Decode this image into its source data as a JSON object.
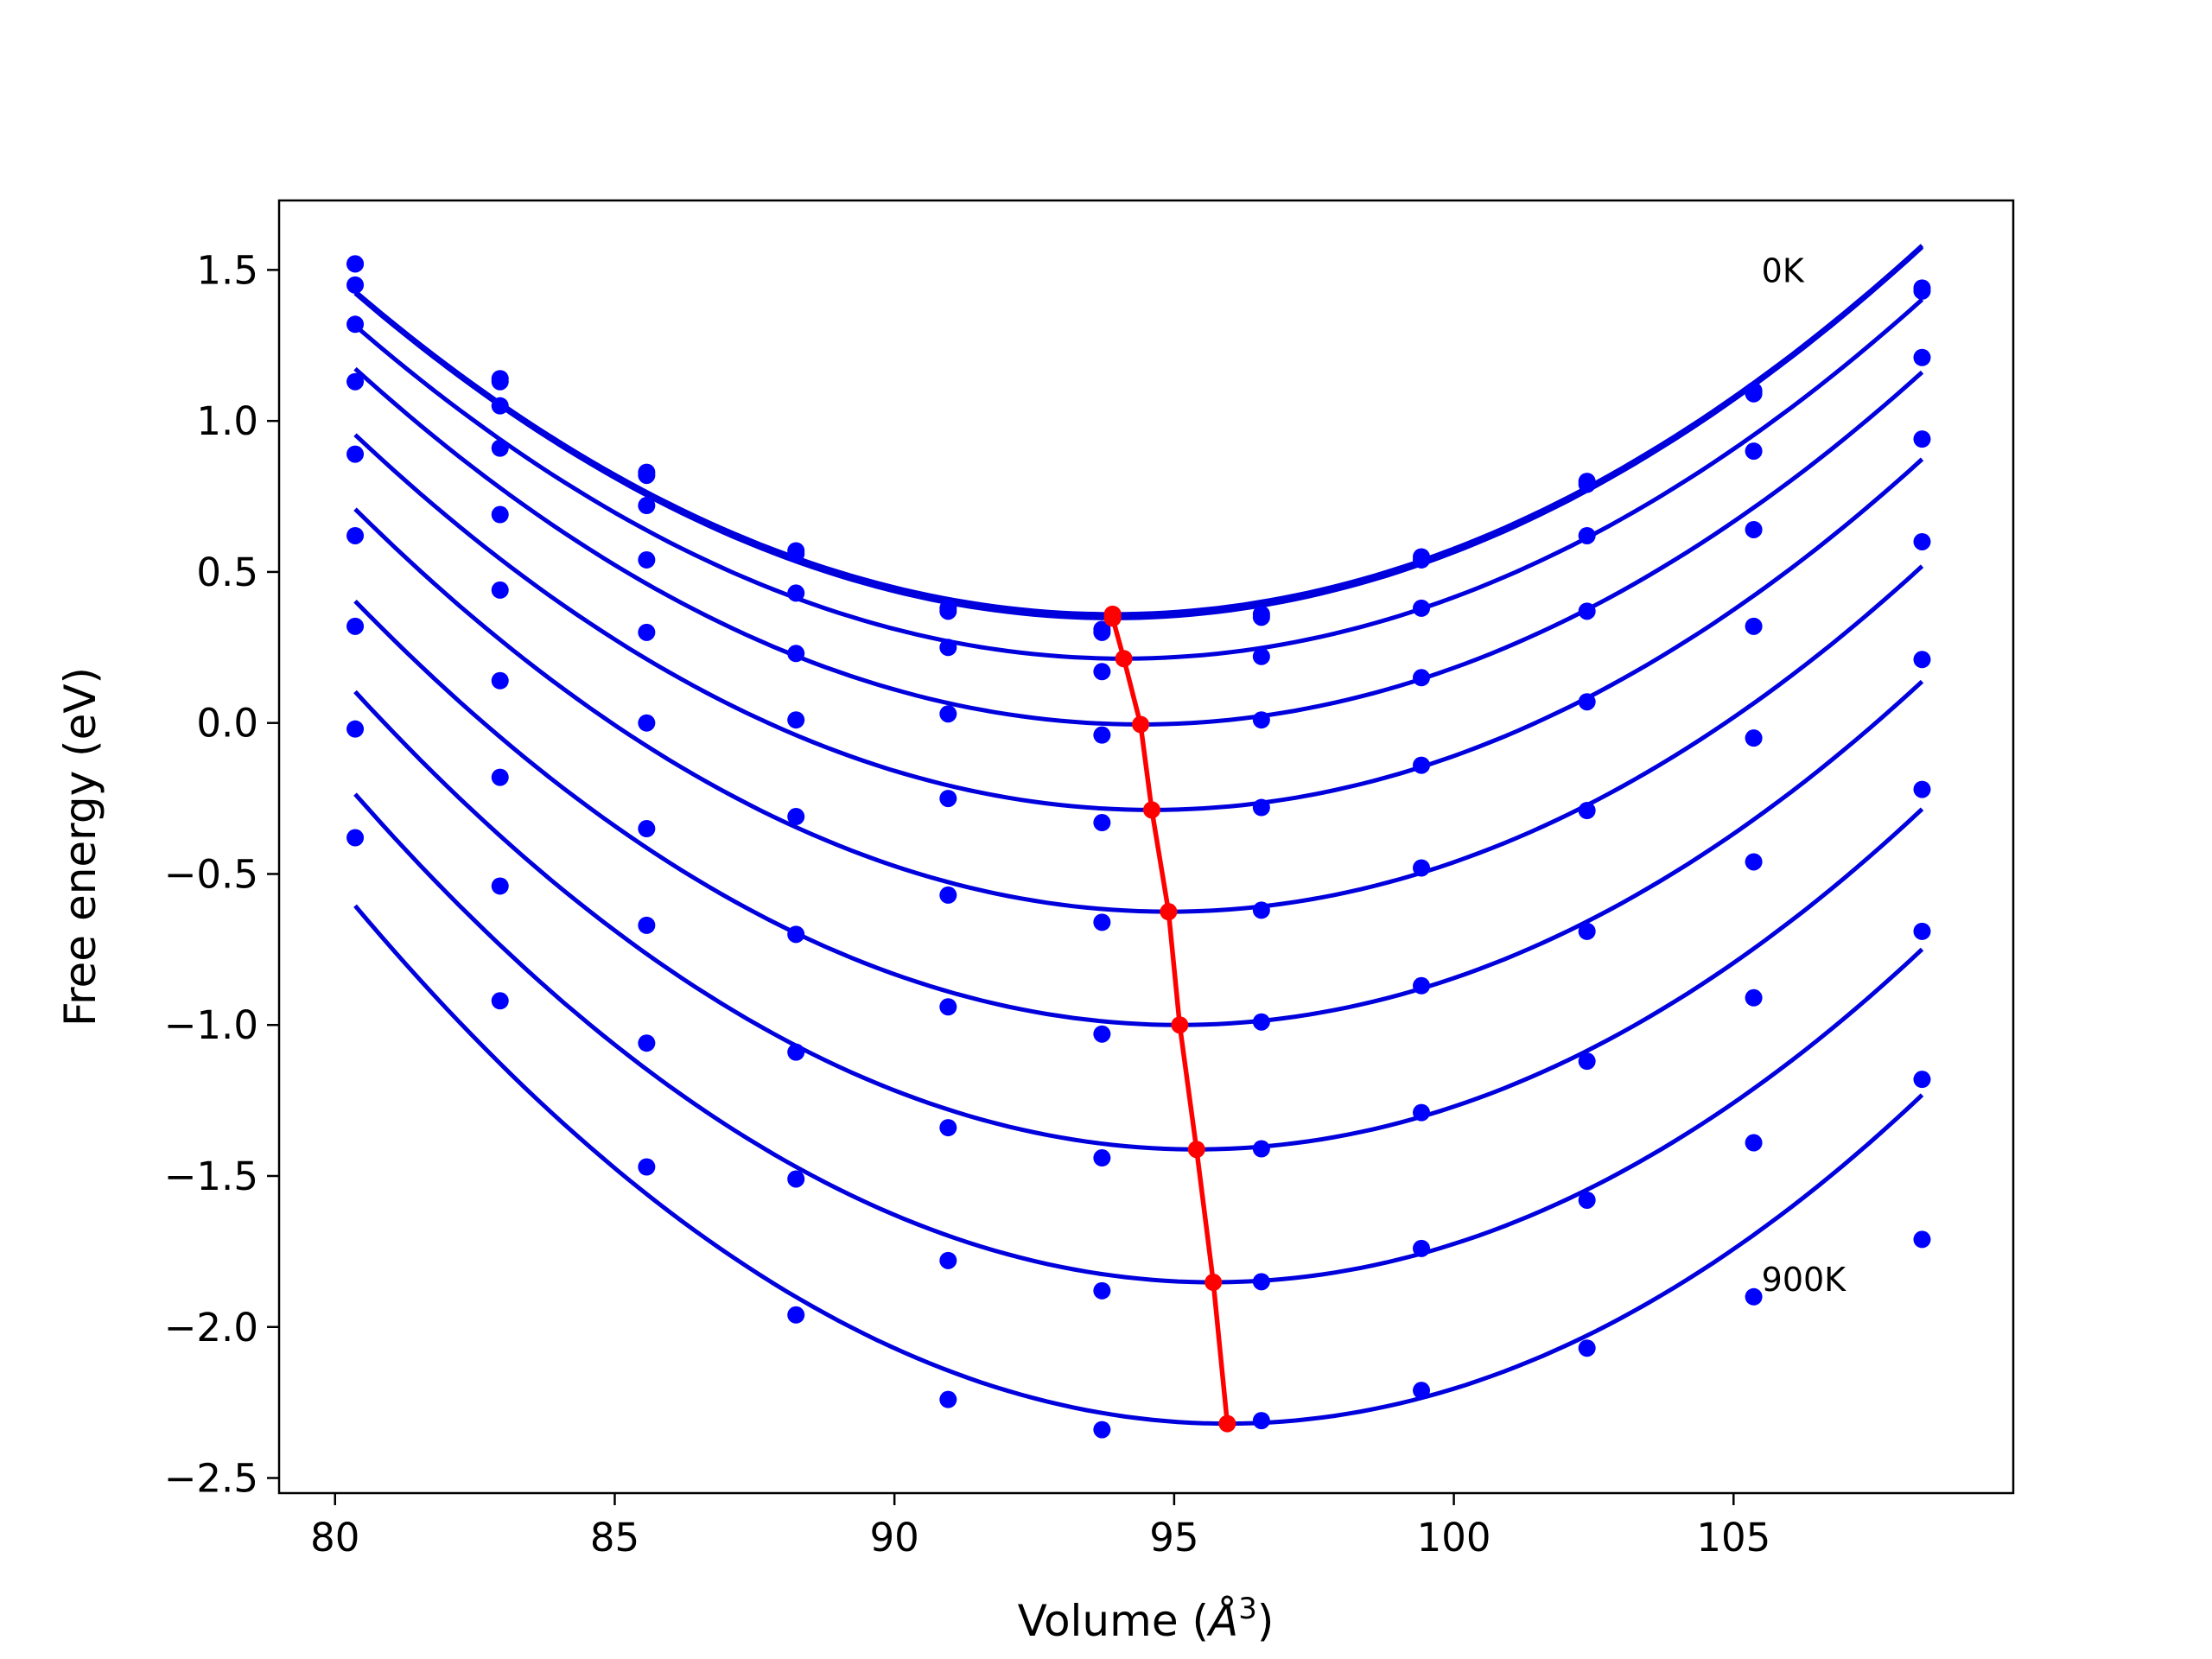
{
  "chart_data": {
    "type": "line",
    "title": "",
    "xlabel": "Volume (",
    "xlabel_symbol": "Å",
    "xlabel_exponent": "3",
    "xlabel_close": ")",
    "ylabel": "Free energy (eV)",
    "xlim": [
      79,
      110
    ],
    "ylim": [
      -2.55,
      1.73
    ],
    "xticks": [
      80,
      85,
      90,
      95,
      100,
      105
    ],
    "xtick_labels": [
      "80",
      "85",
      "90",
      "95",
      "100",
      "105"
    ],
    "yticks": [
      -2.5,
      -2.0,
      -1.5,
      -1.0,
      -0.5,
      0.0,
      0.5,
      1.0,
      1.5
    ],
    "ytick_labels": [
      "−2.5",
      "−2.0",
      "−1.5",
      "−1.0",
      "−0.5",
      "0.0",
      "0.5",
      "1.0",
      "1.5"
    ],
    "grid": false,
    "annotations": [
      {
        "text": "0K",
        "x": 105.5,
        "y": 1.5
      },
      {
        "text": "900K",
        "x": 105.5,
        "y": -1.84
      }
    ],
    "volumes": [
      80.36,
      82.95,
      85.57,
      88.24,
      90.96,
      93.71,
      96.56,
      99.42,
      102.38,
      105.36,
      108.37
    ],
    "fit_color": "#0000dd",
    "point_color": "#0000ff",
    "min_color": "#ff0000",
    "series": [
      {
        "minimum": [
          93.9,
          0.36
        ],
        "values": [
          1.52,
          1.14,
          0.83,
          0.57,
          0.38,
          0.31,
          0.36,
          0.55,
          0.8,
          1.1,
          1.44
        ]
      },
      {
        "minimum": [
          93.9,
          0.347
        ],
        "values": [
          1.52,
          1.13,
          0.82,
          0.56,
          0.37,
          0.3,
          0.35,
          0.54,
          0.79,
          1.09,
          1.43
        ]
      },
      {
        "minimum": [
          94.1,
          0.213
        ],
        "values": [
          1.45,
          1.05,
          0.72,
          0.43,
          0.25,
          0.17,
          0.22,
          0.38,
          0.62,
          0.9,
          1.21
        ]
      },
      {
        "minimum": [
          94.4,
          -0.005
        ],
        "values": [
          1.32,
          0.91,
          0.54,
          0.23,
          0.03,
          -0.04,
          0.01,
          0.15,
          0.37,
          0.64,
          0.94
        ]
      },
      {
        "minimum": [
          94.6,
          -0.288
        ],
        "values": [
          1.13,
          0.69,
          0.3,
          0.01,
          -0.25,
          -0.33,
          -0.28,
          -0.14,
          0.07,
          0.32,
          0.6
        ]
      },
      {
        "minimum": [
          94.9,
          -0.625
        ],
        "values": [
          0.89,
          0.44,
          0.0,
          -0.31,
          -0.57,
          -0.66,
          -0.62,
          -0.48,
          -0.29,
          -0.05,
          0.21
        ]
      },
      {
        "minimum": [
          95.1,
          -1.0
        ],
        "values": [
          0.62,
          0.14,
          -0.35,
          -0.7,
          -0.94,
          -1.03,
          -0.99,
          -0.87,
          -0.69,
          -0.46,
          -0.22
        ]
      },
      {
        "minimum": [
          95.4,
          -1.412
        ],
        "values": [
          0.32,
          -0.18,
          -0.67,
          -1.09,
          -1.34,
          -1.44,
          -1.41,
          -1.29,
          -1.12,
          -0.91,
          -0.69
        ]
      },
      {
        "minimum": [
          95.7,
          -1.852
        ],
        "values": [
          -0.02,
          -0.54,
          -1.06,
          -1.51,
          -1.78,
          -1.88,
          -1.85,
          -1.74,
          -1.58,
          -1.39,
          -1.18
        ]
      },
      {
        "minimum": [
          95.95,
          -2.32
        ],
        "values": [
          -0.38,
          -0.92,
          -1.47,
          -1.96,
          -2.24,
          -2.34,
          -2.31,
          -2.21,
          -2.07,
          -1.9,
          -1.71
        ]
      }
    ]
  }
}
